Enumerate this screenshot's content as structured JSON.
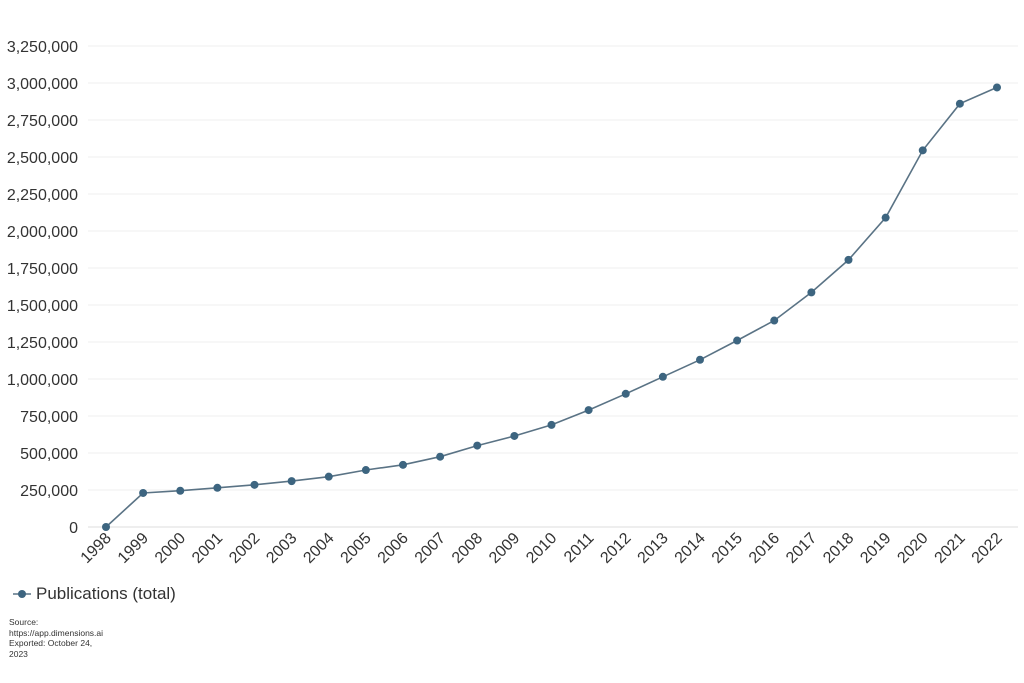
{
  "chart_data": {
    "type": "line",
    "title": "",
    "xlabel": "",
    "ylabel": "",
    "ylim": [
      0,
      3250000
    ],
    "yticks": [
      0,
      250000,
      500000,
      750000,
      1000000,
      1250000,
      1500000,
      1750000,
      2000000,
      2250000,
      2500000,
      2750000,
      3000000,
      3250000
    ],
    "ytick_labels": [
      "0",
      "250,000",
      "500,000",
      "750,000",
      "1,000,000",
      "1,250,000",
      "1,500,000",
      "1,750,000",
      "2,000,000",
      "2,250,000",
      "2,500,000",
      "2,750,000",
      "3,000,000",
      "3,250,000"
    ],
    "categories": [
      "1998",
      "1999",
      "2000",
      "2001",
      "2002",
      "2003",
      "2004",
      "2005",
      "2006",
      "2007",
      "2008",
      "2009",
      "2010",
      "2011",
      "2012",
      "2013",
      "2014",
      "2015",
      "2016",
      "2017",
      "2018",
      "2019",
      "2020",
      "2021",
      "2022"
    ],
    "series": [
      {
        "name": "Publications (total)",
        "color": "#3d6580",
        "values": [
          0,
          230000,
          245000,
          265000,
          285000,
          310000,
          340000,
          385000,
          420000,
          475000,
          550000,
          615000,
          690000,
          790000,
          900000,
          1015000,
          1130000,
          1260000,
          1395000,
          1585000,
          1805000,
          2090000,
          2545000,
          2860000,
          2970000
        ]
      }
    ],
    "grid": true,
    "legend_position": "bottom-left"
  },
  "legend": {
    "label": "Publications (total)"
  },
  "source": {
    "line1": "Source:",
    "line2": "https://app.dimensions.ai",
    "line3": "Exported: October 24,",
    "line4": "2023"
  }
}
